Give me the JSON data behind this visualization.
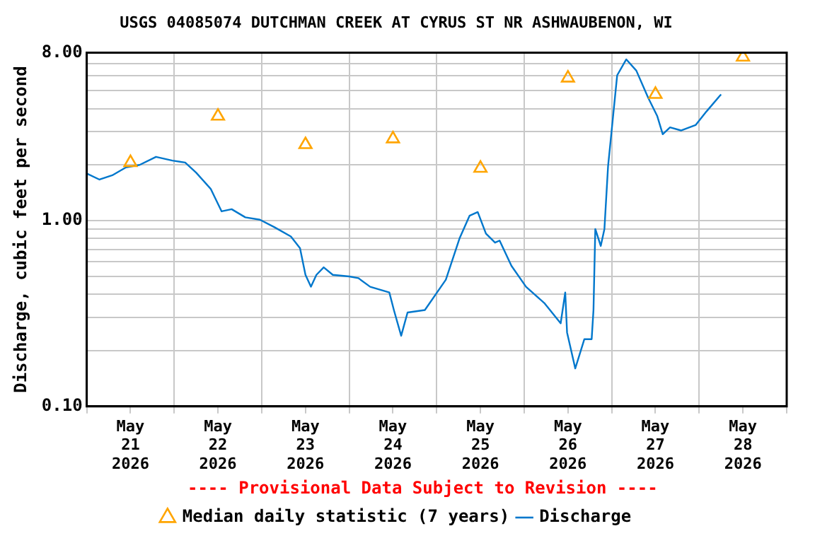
{
  "chart_data": {
    "type": "line",
    "title": "USGS 04085074 DUTCHMAN CREEK AT CYRUS ST NR ASHWAUBENON, WI",
    "ylabel": "Discharge, cubic feet per second",
    "log": "y",
    "grid": true,
    "legend": "bottom",
    "xlim": [
      "2026-05-21T00:00",
      "2026-05-29T00:00"
    ],
    "xticks": [
      {
        "value": "2026-05-21T00:00",
        "label": null
      },
      {
        "value": "2026-05-21T12:00",
        "label": "May 21 2026"
      },
      {
        "value": "2026-05-22T00:00",
        "label": null
      },
      {
        "value": "2026-05-22T12:00",
        "label": "May 22 2026"
      },
      {
        "value": "2026-05-23T00:00",
        "label": null
      },
      {
        "value": "2026-05-23T12:00",
        "label": "May 23 2026"
      },
      {
        "value": "2026-05-24T00:00",
        "label": null
      },
      {
        "value": "2026-05-24T12:00",
        "label": "May 24 2026"
      },
      {
        "value": "2026-05-25T00:00",
        "label": null
      },
      {
        "value": "2026-05-25T12:00",
        "label": "May 25 2026"
      },
      {
        "value": "2026-05-26T00:00",
        "label": null
      },
      {
        "value": "2026-05-26T12:00",
        "label": "May 26 2026"
      },
      {
        "value": "2026-05-27T00:00",
        "label": null
      },
      {
        "value": "2026-05-27T12:00",
        "label": "May 27 2026"
      },
      {
        "value": "2026-05-28T00:00",
        "label": null
      },
      {
        "value": "2026-05-28T12:00",
        "label": "May 28 2026"
      },
      {
        "value": "2026-05-29T00:00",
        "label": null
      }
    ],
    "ylim": [
      0.1,
      8
    ],
    "yticks": [
      {
        "value": 0.1,
        "label": "0.10"
      },
      {
        "value": 0.2,
        "label": null
      },
      {
        "value": 0.3,
        "label": null
      },
      {
        "value": 0.4,
        "label": null
      },
      {
        "value": 0.5,
        "label": null
      },
      {
        "value": 0.6,
        "label": null
      },
      {
        "value": 0.7,
        "label": null
      },
      {
        "value": 0.8,
        "label": null
      },
      {
        "value": 0.9,
        "label": null
      },
      {
        "value": 1,
        "label": "1.00"
      },
      {
        "value": 2,
        "label": null
      },
      {
        "value": 3,
        "label": null
      },
      {
        "value": 4,
        "label": null
      },
      {
        "value": 5,
        "label": null
      },
      {
        "value": 6,
        "label": null
      },
      {
        "value": 7,
        "label": null
      },
      {
        "value": 8,
        "label": "8.00"
      }
    ],
    "annotations": [
      "---- Provisional Data Subject to Revision ----"
    ],
    "series": [
      {
        "name": "Median daily statistic (7 years)",
        "type": "scatter",
        "marker": "triangle",
        "color": "#ffa500",
        "x": [
          "2026-05-21T12:00",
          "2026-05-22T12:00",
          "2026-05-23T12:00",
          "2026-05-24T12:00",
          "2026-05-25T12:00",
          "2026-05-26T12:00",
          "2026-05-27T12:00",
          "2026-05-28T12:00"
        ],
        "values": [
          2.05,
          3.64,
          2.56,
          2.75,
          1.91,
          5.84,
          4.77,
          7.57
        ]
      },
      {
        "name": "Discharge",
        "marker": "none",
        "color": "#0077cc",
        "x": [
          "2026-05-21T00:00",
          "2026-05-21T03:30",
          "2026-05-21T07:00",
          "2026-05-21T10:45",
          "2026-05-21T14:30",
          "2026-05-21T19:00",
          "2026-05-21T23:30",
          "2026-05-22T03:00",
          "2026-05-22T06:00",
          "2026-05-22T10:00",
          "2026-05-22T13:00",
          "2026-05-22T15:45",
          "2026-05-22T19:30",
          "2026-05-22T23:30",
          "2026-05-23T03:30",
          "2026-05-23T08:00",
          "2026-05-23T10:30",
          "2026-05-23T12:00",
          "2026-05-23T13:30",
          "2026-05-23T15:00",
          "2026-05-23T17:00",
          "2026-05-23T19:30",
          "2026-05-24T00:00",
          "2026-05-24T02:30",
          "2026-05-24T05:45",
          "2026-05-24T11:00",
          "2026-05-24T12:15",
          "2026-05-24T14:15",
          "2026-05-24T16:00",
          "2026-05-24T20:45",
          "2026-05-25T02:30",
          "2026-05-25T06:15",
          "2026-05-25T09:00",
          "2026-05-25T11:15",
          "2026-05-25T13:30",
          "2026-05-25T16:00",
          "2026-05-25T17:15",
          "2026-05-25T20:30",
          "2026-05-26T00:30",
          "2026-05-26T05:30",
          "2026-05-26T10:00",
          "2026-05-26T11:15",
          "2026-05-26T11:45",
          "2026-05-26T14:00",
          "2026-05-26T16:30",
          "2026-05-26T18:30",
          "2026-05-26T19:00",
          "2026-05-26T19:30",
          "2026-05-26T21:00",
          "2026-05-26T22:00",
          "2026-05-26T23:00",
          "2026-05-27T00:15",
          "2026-05-27T01:30",
          "2026-05-27T04:00",
          "2026-05-27T06:45",
          "2026-05-27T10:00",
          "2026-05-27T12:30",
          "2026-05-27T14:00",
          "2026-05-27T16:00",
          "2026-05-27T19:00",
          "2026-05-27T23:00",
          "2026-05-28T02:00",
          "2026-05-28T06:00"
        ],
        "values": [
          1.79,
          1.66,
          1.75,
          1.93,
          1.99,
          2.2,
          2.1,
          2.05,
          1.81,
          1.48,
          1.12,
          1.15,
          1.04,
          1.01,
          0.92,
          0.82,
          0.71,
          0.51,
          0.44,
          0.51,
          0.56,
          0.51,
          0.5,
          0.49,
          0.44,
          0.41,
          0.33,
          0.24,
          0.32,
          0.33,
          0.48,
          0.8,
          1.06,
          1.11,
          0.85,
          0.76,
          0.78,
          0.57,
          0.44,
          0.36,
          0.28,
          0.41,
          0.25,
          0.16,
          0.23,
          0.23,
          0.33,
          0.9,
          0.73,
          0.9,
          1.96,
          3.44,
          6.04,
          7.36,
          6.4,
          4.57,
          3.64,
          2.91,
          3.17,
          3.05,
          3.26,
          3.86,
          4.77
        ]
      }
    ]
  }
}
